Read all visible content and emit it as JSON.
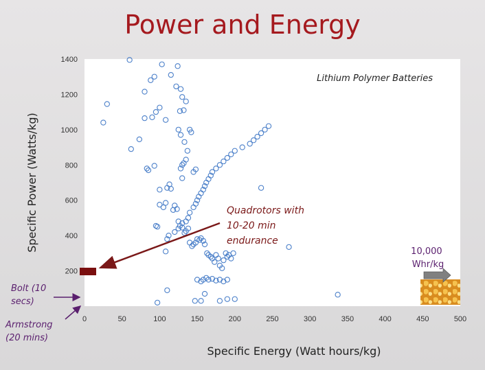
{
  "slide": {
    "title": "Power and Energy"
  },
  "chart_data": {
    "type": "scatter",
    "xlabel": "Specific Energy (Watt hours/kg)",
    "ylabel": "Specific Power (Watts/kg)",
    "inset_label": "Lithium Polymer Batteries",
    "xlim": [
      0,
      500
    ],
    "ylim": [
      0,
      1400
    ],
    "xticks": [
      0,
      50,
      100,
      150,
      200,
      250,
      300,
      350,
      400,
      450,
      500
    ],
    "yticks": [
      200,
      400,
      600,
      800,
      1000,
      1200,
      1400
    ],
    "grid": false,
    "marker_color": "#4a7fc9",
    "series": [
      {
        "x": [
          60,
          103,
          124,
          30,
          25,
          62,
          73,
          80,
          90,
          95,
          100,
          108,
          80,
          88,
          93,
          115,
          122,
          128,
          130,
          135,
          127,
          132,
          140,
          125,
          128,
          133,
          137,
          142,
          145,
          148,
          128,
          130,
          132,
          135,
          130,
          83,
          85,
          93,
          97,
          95,
          100,
          105,
          108,
          110,
          113,
          100,
          115,
          118,
          120,
          123,
          125,
          127,
          130,
          133,
          135,
          138,
          140,
          143,
          145,
          148,
          150,
          153,
          155,
          158,
          160,
          163,
          165,
          168,
          170,
          173,
          175,
          178,
          180,
          183,
          185,
          188,
          190,
          192,
          195,
          198,
          108,
          110,
          112,
          120,
          125,
          130,
          135,
          138,
          140,
          145,
          148,
          150,
          152,
          155,
          158,
          160,
          162,
          165,
          168,
          170,
          175,
          180,
          185,
          190,
          195,
          200,
          210,
          220,
          225,
          230,
          235,
          240,
          245,
          235,
          272,
          337,
          150,
          155,
          158,
          162,
          165,
          170,
          175,
          180,
          185,
          190,
          97,
          110,
          147,
          155,
          160,
          180,
          190,
          200
        ],
        "y": [
          1395,
          1370,
          1360,
          1145,
          1040,
          890,
          945,
          1065,
          1070,
          1100,
          1125,
          1055,
          1215,
          1280,
          1300,
          1310,
          1245,
          1230,
          1185,
          1160,
          1105,
          1110,
          1000,
          1000,
          970,
          930,
          880,
          985,
          760,
          775,
          780,
          800,
          810,
          830,
          725,
          780,
          770,
          795,
          450,
          455,
          575,
          560,
          585,
          670,
          690,
          660,
          665,
          545,
          570,
          550,
          480,
          455,
          445,
          415,
          425,
          440,
          360,
          340,
          350,
          360,
          380,
          375,
          385,
          370,
          350,
          300,
          290,
          280,
          270,
          250,
          290,
          270,
          230,
          215,
          260,
          300,
          280,
          290,
          270,
          300,
          310,
          380,
          400,
          420,
          440,
          470,
          480,
          500,
          530,
          560,
          580,
          600,
          620,
          640,
          660,
          680,
          700,
          720,
          740,
          760,
          780,
          800,
          820,
          840,
          860,
          880,
          900,
          920,
          940,
          960,
          980,
          1000,
          1020,
          670,
          335,
          65,
          150,
          140,
          150,
          160,
          150,
          155,
          145,
          150,
          140,
          150,
          20,
          90,
          30,
          30,
          70,
          30,
          40,
          40
        ],
        "name": ""
      }
    ],
    "markers": [
      {
        "label": "Bolt (10 secs)",
        "x": 0,
        "y": 200,
        "color": "#7a0f0f"
      },
      {
        "label": "Armstrong (20 mins)",
        "x": 0,
        "y": 30,
        "color": "#5a1f6e"
      }
    ],
    "annotations": {
      "quadrotors": [
        "Quadrotors with",
        "10-20 min",
        "endurance"
      ],
      "gasoline": [
        "10,000",
        "Whr/kg"
      ],
      "bolt": [
        "Bolt (10",
        "secs)"
      ],
      "armstrong": [
        "Armstrong",
        "(20 mins)"
      ]
    }
  }
}
